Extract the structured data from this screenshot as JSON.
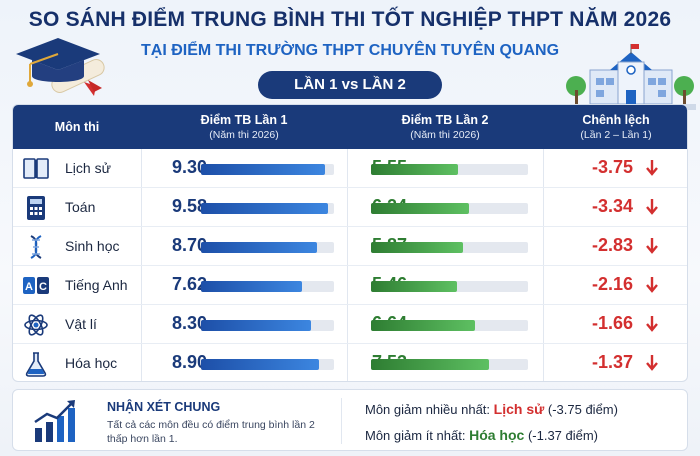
{
  "header": {
    "title": "SO SÁNH ĐIỂM TRUNG BÌNH THI TỐT NGHIỆP THPT NĂM 2026",
    "subtitle": "TẠI ĐIỂM THI TRƯỜNG THPT CHUYÊN TUYÊN QUANG",
    "badge": "LẦN 1 vs LẦN 2"
  },
  "table": {
    "col_subject": "Môn thi",
    "col_round1": "Điểm TB Lần 1",
    "col_round1_note": "(Năm thi 2026)",
    "col_round2": "Điểm TB Lần 2",
    "col_round2_note": "(Năm thi 2026)",
    "col_diff": "Chênh lệch",
    "col_diff_note": "(Lần 2 – Lần 1)",
    "rows": [
      {
        "subject": "Lịch sử",
        "icon": "book-icon",
        "round1": "9.30",
        "round2": "5.55",
        "diff": "-3.75"
      },
      {
        "subject": "Toán",
        "icon": "calculator-icon",
        "round1": "9.58",
        "round2": "6.24",
        "diff": "-3.34"
      },
      {
        "subject": "Sinh học",
        "icon": "dna-icon",
        "round1": "8.70",
        "round2": "5.87",
        "diff": "-2.83"
      },
      {
        "subject": "Tiếng Anh",
        "icon": "abc-icon",
        "round1": "7.62",
        "round2": "5.46",
        "diff": "-2.16"
      },
      {
        "subject": "Vật lí",
        "icon": "atom-icon",
        "round1": "8.30",
        "round2": "6.64",
        "diff": "-1.66"
      },
      {
        "subject": "Hóa học",
        "icon": "flask-icon",
        "round1": "8.90",
        "round2": "7.53",
        "diff": "-1.37"
      }
    ]
  },
  "chart_data": {
    "type": "bar",
    "categories": [
      "Lịch sử",
      "Toán",
      "Sinh học",
      "Tiếng Anh",
      "Vật lí",
      "Hóa học"
    ],
    "series": [
      {
        "name": "Điểm TB Lần 1",
        "values": [
          9.3,
          9.58,
          8.7,
          7.62,
          8.3,
          8.9
        ]
      },
      {
        "name": "Điểm TB Lần 2",
        "values": [
          5.55,
          6.24,
          5.87,
          5.46,
          6.64,
          7.53
        ]
      },
      {
        "name": "Chênh lệch",
        "values": [
          -3.75,
          -3.34,
          -2.83,
          -2.16,
          -1.66,
          -1.37
        ]
      }
    ],
    "xlim": [
      0,
      10
    ],
    "colors": {
      "round1": "#1d4fa8",
      "round2": "#2e7d32",
      "diff": "#d32f2f"
    }
  },
  "summary": {
    "title": "NHẬN XÉT CHUNG",
    "text": "Tất cả các môn đều có điểm trung bình lần 2 thấp hơn lần 1.",
    "most_label": "Môn giảm nhiều nhất:",
    "most_subject": "Lịch sử",
    "most_value": "(-3.75 điểm)",
    "least_label": "Môn giảm ít nhất:",
    "least_subject": "Hóa học",
    "least_value": "(-1.37 điểm)"
  },
  "colors": {
    "navy": "#1a3a7a",
    "accent_blue": "#1e63c2",
    "green": "#2e7d32",
    "red": "#d32f2f"
  }
}
